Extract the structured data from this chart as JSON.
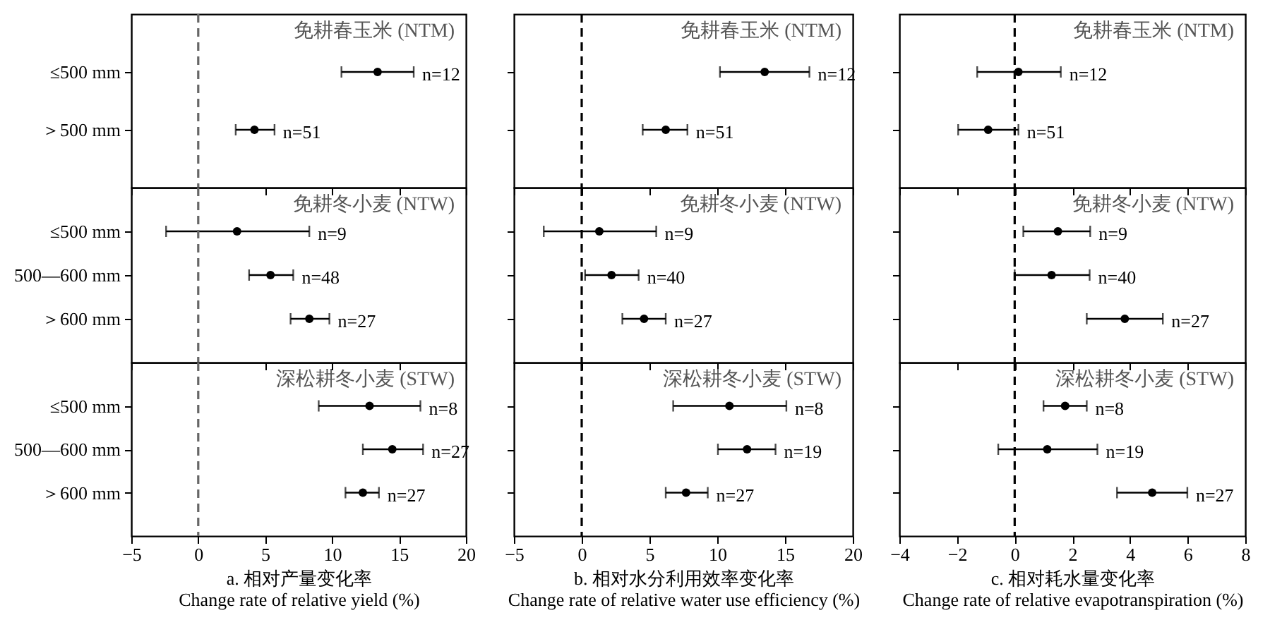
{
  "chart_data": [
    {
      "type": "scatter",
      "orientation": "horizontal",
      "title": "免耕春玉米 (NTM)",
      "categories": [
        "≤500 mm",
        "＞500 mm"
      ],
      "values": [
        13.4,
        4.2
      ],
      "errors": [
        [
          10.7,
          16.1
        ],
        [
          2.8,
          5.7
        ]
      ],
      "annotations": [
        {
          "text": "n=12",
          "x": 16.1
        },
        {
          "text": "n=51",
          "x": 5.7
        }
      ],
      "color": "#000000",
      "marker": "circle",
      "xlim": [
        -5,
        20
      ],
      "xticks": [
        -5,
        0,
        5,
        10,
        15,
        20
      ],
      "tick_labels": "y",
      "ref_lines": [
        {
          "axis": "x",
          "value": 0,
          "color": "#666666",
          "line_style": "dashed"
        }
      ]
    },
    {
      "type": "scatter",
      "orientation": "horizontal",
      "title": "免耕春玉米 (NTM)",
      "categories": [
        null,
        null
      ],
      "values": [
        13.5,
        6.2
      ],
      "errors": [
        [
          10.2,
          16.8
        ],
        [
          4.5,
          7.8
        ]
      ],
      "annotations": [
        {
          "text": "n=12",
          "x": 16.8
        },
        {
          "text": "n=51",
          "x": 7.8
        }
      ],
      "color": "#000000",
      "marker": "circle",
      "xlim": [
        -5,
        20
      ],
      "xticks": [
        -5,
        0,
        5,
        10,
        15,
        20
      ],
      "tick_labels": false,
      "ref_lines": [
        {
          "axis": "x",
          "value": 0,
          "color": "#000000",
          "line_style": "dashed"
        }
      ]
    },
    {
      "type": "scatter",
      "orientation": "horizontal",
      "title": "免耕春玉米 (NTM)",
      "categories": [
        null,
        null
      ],
      "values": [
        0.13,
        -0.92
      ],
      "errors": [
        [
          -1.3,
          1.6
        ],
        [
          -1.96,
          0.13
        ]
      ],
      "annotations": [
        {
          "text": "n=12",
          "x": 1.6
        },
        {
          "text": "n=51",
          "x": 0.13
        }
      ],
      "color": "#000000",
      "marker": "circle",
      "xlim": [
        -4,
        8
      ],
      "xticks": [
        -4,
        -2,
        0,
        2,
        4,
        6,
        8
      ],
      "tick_labels": false,
      "ref_lines": [
        {
          "axis": "x",
          "value": 0,
          "color": "#000000",
          "line_style": "dashed"
        }
      ]
    },
    {
      "type": "scatter",
      "orientation": "horizontal",
      "title": "免耕冬小麦 (NTW)",
      "categories": [
        "≤500 mm",
        "500—600 mm",
        "＞600 mm"
      ],
      "values": [
        2.9,
        5.4,
        8.3
      ],
      "errors": [
        [
          -2.4,
          8.3
        ],
        [
          3.8,
          7.1
        ],
        [
          6.9,
          9.8
        ]
      ],
      "annotations": [
        {
          "text": "n=9",
          "x": 8.3
        },
        {
          "text": "n=48",
          "x": 7.1
        },
        {
          "text": "n=27",
          "x": 9.8
        }
      ],
      "color": "#000000",
      "marker": "circle",
      "xlim": [
        -5,
        20
      ],
      "xticks": [
        -5,
        0,
        5,
        10,
        15,
        20
      ],
      "tick_labels": "y",
      "ref_lines": [
        {
          "axis": "x",
          "value": 0,
          "color": "#666666",
          "line_style": "dashed"
        }
      ]
    },
    {
      "type": "scatter",
      "orientation": "horizontal",
      "title": "免耕冬小麦 (NTW)",
      "categories": [
        null,
        null,
        null
      ],
      "values": [
        1.3,
        2.2,
        4.6
      ],
      "errors": [
        [
          -2.8,
          5.5
        ],
        [
          0.25,
          4.2
        ],
        [
          3.0,
          6.2
        ]
      ],
      "annotations": [
        {
          "text": "n=9",
          "x": 5.5
        },
        {
          "text": "n=40",
          "x": 4.2
        },
        {
          "text": "n=27",
          "x": 6.2
        }
      ],
      "color": "#000000",
      "marker": "circle",
      "xlim": [
        -5,
        20
      ],
      "xticks": [
        -5,
        0,
        5,
        10,
        15,
        20
      ],
      "tick_labels": false,
      "ref_lines": [
        {
          "axis": "x",
          "value": 0,
          "color": "#000000",
          "line_style": "dashed"
        }
      ]
    },
    {
      "type": "scatter",
      "orientation": "horizontal",
      "title": "免耕冬小麦 (NTW)",
      "categories": [
        null,
        null,
        null
      ],
      "values": [
        1.5,
        1.28,
        3.82
      ],
      "errors": [
        [
          0.3,
          2.62
        ],
        [
          0.0,
          2.6
        ],
        [
          2.5,
          5.14
        ]
      ],
      "annotations": [
        {
          "text": "n=9",
          "x": 2.62
        },
        {
          "text": "n=40",
          "x": 2.6
        },
        {
          "text": "n=27",
          "x": 5.14
        }
      ],
      "color": "#000000",
      "marker": "circle",
      "xlim": [
        -4,
        8
      ],
      "xticks": [
        -4,
        -2,
        0,
        2,
        4,
        6,
        8
      ],
      "tick_labels": false,
      "ref_lines": [
        {
          "axis": "x",
          "value": 0,
          "color": "#000000",
          "line_style": "dashed"
        }
      ]
    },
    {
      "type": "scatter",
      "orientation": "horizontal",
      "title": "深松耕冬小麦 (STW)",
      "categories": [
        "≤500 mm",
        "500—600 mm",
        "＞600 mm"
      ],
      "values": [
        12.8,
        14.5,
        12.3
      ],
      "errors": [
        [
          9.0,
          16.6
        ],
        [
          12.3,
          16.8
        ],
        [
          11.0,
          13.5
        ]
      ],
      "annotations": [
        {
          "text": "n=8",
          "x": 16.6
        },
        {
          "text": "n=27",
          "x": 16.8
        },
        {
          "text": "n=27",
          "x": 13.5
        }
      ],
      "color": "#000000",
      "marker": "circle",
      "xlim": [
        -5,
        20
      ],
      "xticks": [
        -5,
        0,
        5,
        10,
        15,
        20
      ],
      "xlabel": "a. 相对产量变化率\nChange rate of relative yield  (%)",
      "ref_lines": [
        {
          "axis": "x",
          "value": 0,
          "color": "#666666",
          "line_style": "dashed"
        }
      ]
    },
    {
      "type": "scatter",
      "orientation": "horizontal",
      "title": "深松耕冬小麦 (STW)",
      "categories": [
        null,
        null,
        null
      ],
      "values": [
        10.9,
        12.2,
        7.7
      ],
      "errors": [
        [
          6.75,
          15.1
        ],
        [
          10.05,
          14.3
        ],
        [
          6.2,
          9.3
        ]
      ],
      "annotations": [
        {
          "text": "n=8",
          "x": 15.1
        },
        {
          "text": "n=19",
          "x": 14.3
        },
        {
          "text": "n=27",
          "x": 9.3
        }
      ],
      "color": "#000000",
      "marker": "circle",
      "xlim": [
        -5,
        20
      ],
      "xticks": [
        -5,
        0,
        5,
        10,
        15,
        20
      ],
      "tick_labels": "x",
      "xlabel": "b. 相对水分利用效率变化率\nChange rate of relative water use efficiency (%)",
      "ref_lines": [
        {
          "axis": "x",
          "value": 0,
          "color": "#000000",
          "line_style": "dashed"
        }
      ]
    },
    {
      "type": "scatter",
      "orientation": "horizontal",
      "title": "深松耕冬小麦 (STW)",
      "categories": [
        null,
        null,
        null
      ],
      "values": [
        1.75,
        1.13,
        4.77
      ],
      "errors": [
        [
          1.0,
          2.5
        ],
        [
          -0.57,
          2.87
        ],
        [
          3.55,
          5.99
        ]
      ],
      "annotations": [
        {
          "text": "n=8",
          "x": 2.5
        },
        {
          "text": "n=19",
          "x": 2.87
        },
        {
          "text": "n=27",
          "x": 5.99
        }
      ],
      "color": "#000000",
      "marker": "circle",
      "xlim": [
        -4,
        8
      ],
      "xticks": [
        -4,
        -2,
        0,
        2,
        4,
        6,
        8
      ],
      "tick_labels": "x",
      "xlabel": "c. 相对耗水量变化率\nChange rate of relative evapotranspiration (%)",
      "ref_lines": [
        {
          "axis": "x",
          "value": 0,
          "color": "#000000",
          "line_style": "dashed"
        }
      ]
    }
  ]
}
